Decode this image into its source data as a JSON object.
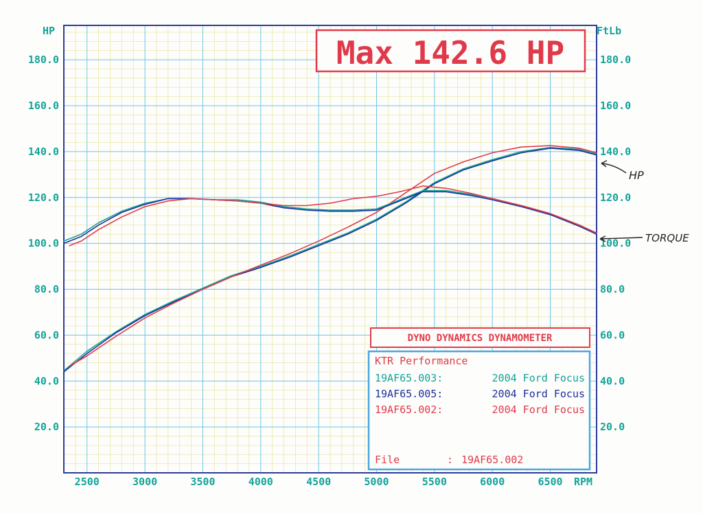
{
  "chart_data": {
    "type": "line",
    "title": "Max 142.6 HP",
    "xunit": "RPM",
    "y_left_label": "HP",
    "y_right_label": "FtLb",
    "x_ticks": [
      2500,
      3000,
      3500,
      4000,
      4500,
      5000,
      5500,
      6000,
      6500
    ],
    "xlim": [
      2300,
      6900
    ],
    "y_ticks": [
      20,
      40,
      60,
      80,
      100,
      120,
      140,
      160,
      180
    ],
    "ylim": [
      0,
      195
    ],
    "grid": true,
    "legend": {
      "header": "DYNO DYNAMICS DYNAMOMETER",
      "company": "KTR Performance",
      "entries": [
        {
          "code": "19AF65.003:",
          "car": "2004 Ford Focus",
          "color": "#13a39a"
        },
        {
          "code": "19AF65.005:",
          "car": "2004 Ford Focus",
          "color": "#1e2f9a"
        },
        {
          "code": "19AF65.002:",
          "car": "2004 Ford Focus",
          "color": "#e03a4a"
        }
      ],
      "file_label": "File",
      "file_sep": ":",
      "file_value": "19AF65.002",
      "placement": "bottom-right"
    },
    "annotations": {
      "hp": "HP",
      "torque": "TORQUE"
    },
    "series": [
      {
        "name": "19AF65.003",
        "color": "#13a39a",
        "kind": "hp",
        "x": [
          2300,
          2500,
          2750,
          3000,
          3250,
          3500,
          3750,
          4000,
          4250,
          4500,
          4750,
          5000,
          5250,
          5500,
          5750,
          6000,
          6250,
          6500,
          6750,
          6900
        ],
        "y": [
          44.5,
          53,
          61.5,
          69,
          75,
          80.5,
          86,
          90,
          94.5,
          99.5,
          104.5,
          110.5,
          118,
          126.5,
          132.5,
          136.5,
          140,
          141.8,
          141,
          139
        ]
      },
      {
        "name": "19AF65.005",
        "color": "#1e2f9a",
        "kind": "hp",
        "x": [
          2300,
          2500,
          2750,
          3000,
          3250,
          3500,
          3750,
          4000,
          4250,
          4500,
          4750,
          5000,
          5250,
          5500,
          5750,
          6000,
          6250,
          6500,
          6750,
          6900
        ],
        "y": [
          44,
          52,
          61,
          68.5,
          74.5,
          80,
          85.5,
          89.5,
          94,
          99,
          104,
          110,
          117.5,
          126,
          132,
          136,
          139.5,
          141.5,
          140.5,
          138.5
        ]
      },
      {
        "name": "19AF65.002",
        "color": "#e03a4a",
        "kind": "hp",
        "x": [
          2350,
          2500,
          2750,
          3000,
          3250,
          3500,
          3750,
          4000,
          4250,
          4500,
          4750,
          5000,
          5250,
          5500,
          5750,
          6000,
          6250,
          6500,
          6750,
          6900
        ],
        "y": [
          46.5,
          51,
          59.5,
          67.5,
          74,
          80,
          85.5,
          90.5,
          95.5,
          101,
          107,
          113.5,
          122,
          130.5,
          135.5,
          139.5,
          142,
          142.6,
          141.5,
          139.5
        ]
      },
      {
        "name": "19AF65.003",
        "color": "#13a39a",
        "kind": "torque",
        "x": [
          2300,
          2450,
          2600,
          2800,
          3000,
          3200,
          3400,
          3600,
          3800,
          4000,
          4200,
          4400,
          4600,
          4800,
          5000,
          5200,
          5400,
          5600,
          5800,
          6000,
          6250,
          6500,
          6750,
          6900
        ],
        "y": [
          101,
          104,
          109,
          114,
          117.5,
          119.5,
          119.5,
          119,
          119,
          118,
          116,
          115,
          114.5,
          114.5,
          115,
          119,
          123,
          123,
          121.5,
          119.5,
          116.5,
          113,
          108,
          104.5
        ]
      },
      {
        "name": "19AF65.005",
        "color": "#1e2f9a",
        "kind": "torque",
        "x": [
          2300,
          2450,
          2600,
          2800,
          3000,
          3200,
          3400,
          3600,
          3800,
          4000,
          4200,
          4400,
          4600,
          4800,
          5000,
          5200,
          5400,
          5600,
          5800,
          6000,
          6250,
          6500,
          6750,
          6900
        ],
        "y": [
          100,
          103,
          108,
          113.5,
          117,
          119.5,
          119.5,
          119,
          118.5,
          117.5,
          115.5,
          114.5,
          114,
          114,
          114.5,
          118.5,
          122.5,
          122.5,
          121,
          119,
          116,
          112.5,
          107.5,
          104
        ]
      },
      {
        "name": "19AF65.002",
        "color": "#e03a4a",
        "kind": "torque",
        "x": [
          2350,
          2450,
          2600,
          2800,
          3000,
          3200,
          3400,
          3600,
          3800,
          4000,
          4200,
          4400,
          4600,
          4800,
          5000,
          5200,
          5400,
          5600,
          5800,
          6000,
          6250,
          6500,
          6750,
          6900
        ],
        "y": [
          99,
          101,
          106,
          111.5,
          116,
          118.5,
          119.5,
          119,
          118.5,
          117.5,
          116.5,
          116.5,
          117.5,
          119.5,
          120.5,
          122.5,
          125,
          124,
          122,
          119.5,
          116.5,
          113,
          108,
          104.5
        ]
      }
    ]
  }
}
